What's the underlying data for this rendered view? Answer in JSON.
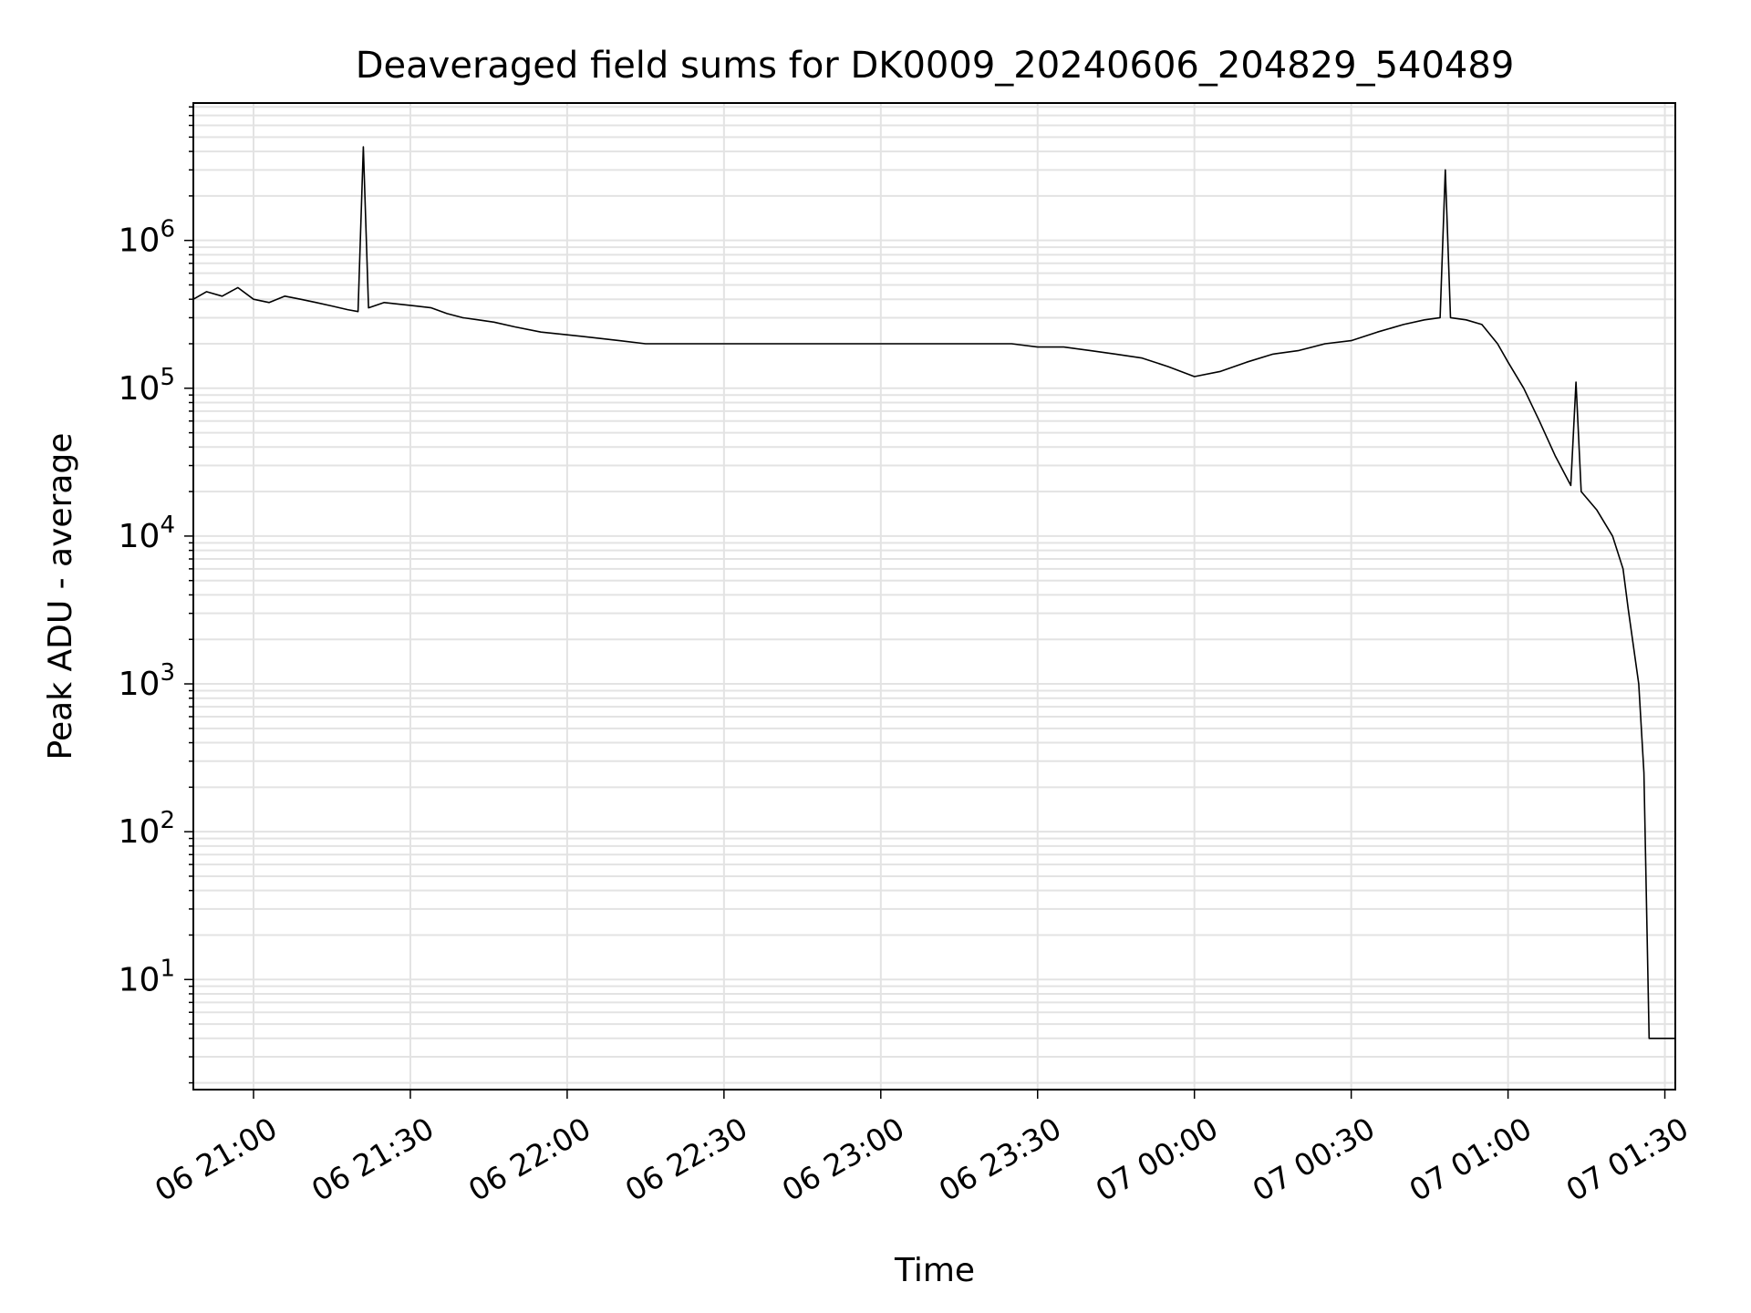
{
  "chart_data": {
    "type": "line",
    "title": "Deaveraged field sums for DK0009_20240606_204829_540489",
    "xlabel": "Time",
    "ylabel": "Peak ADU - average",
    "x_axis": {
      "type": "time",
      "range": [
        "2024-06-06 20:48:29",
        "2024-06-07 01:32:00"
      ],
      "ticks": [
        {
          "t": "2024-06-06 21:00",
          "label": "06 21:00"
        },
        {
          "t": "2024-06-06 21:30",
          "label": "06 21:30"
        },
        {
          "t": "2024-06-06 22:00",
          "label": "06 22:00"
        },
        {
          "t": "2024-06-06 22:30",
          "label": "06 22:30"
        },
        {
          "t": "2024-06-06 23:00",
          "label": "06 23:00"
        },
        {
          "t": "2024-06-06 23:30",
          "label": "06 23:30"
        },
        {
          "t": "2024-06-07 00:00",
          "label": "07 00:00"
        },
        {
          "t": "2024-06-07 00:30",
          "label": "07 00:30"
        },
        {
          "t": "2024-06-07 01:00",
          "label": "07 01:00"
        },
        {
          "t": "2024-06-07 01:30",
          "label": "07 01:30"
        }
      ]
    },
    "y_axis": {
      "scale": "log",
      "range": [
        1.8,
        8500000
      ],
      "ticks": [
        {
          "value": 10,
          "base": "10",
          "exp": "1"
        },
        {
          "value": 100,
          "base": "10",
          "exp": "2"
        },
        {
          "value": 1000,
          "base": "10",
          "exp": "3"
        },
        {
          "value": 10000,
          "base": "10",
          "exp": "4"
        },
        {
          "value": 100000,
          "base": "10",
          "exp": "5"
        },
        {
          "value": 1000000,
          "base": "10",
          "exp": "6"
        }
      ]
    },
    "grid": true,
    "line_color": "#000000",
    "grid_color": "#e3e3e3",
    "series": [
      {
        "points": [
          [
            "2024-06-06 20:48:29",
            400000
          ],
          [
            "2024-06-06 20:51",
            450000
          ],
          [
            "2024-06-06 20:54",
            420000
          ],
          [
            "2024-06-06 20:57",
            480000
          ],
          [
            "2024-06-06 21:00",
            400000
          ],
          [
            "2024-06-06 21:03",
            380000
          ],
          [
            "2024-06-06 21:06",
            420000
          ],
          [
            "2024-06-06 21:09",
            400000
          ],
          [
            "2024-06-06 21:12",
            380000
          ],
          [
            "2024-06-06 21:15",
            360000
          ],
          [
            "2024-06-06 21:18",
            340000
          ],
          [
            "2024-06-06 21:20",
            330000
          ],
          [
            "2024-06-06 21:21",
            4300000
          ],
          [
            "2024-06-06 21:22",
            350000
          ],
          [
            "2024-06-06 21:25",
            380000
          ],
          [
            "2024-06-06 21:28",
            370000
          ],
          [
            "2024-06-06 21:31",
            360000
          ],
          [
            "2024-06-06 21:34",
            350000
          ],
          [
            "2024-06-06 21:37",
            320000
          ],
          [
            "2024-06-06 21:40",
            300000
          ],
          [
            "2024-06-06 21:43",
            290000
          ],
          [
            "2024-06-06 21:46",
            280000
          ],
          [
            "2024-06-06 21:50",
            260000
          ],
          [
            "2024-06-06 21:55",
            240000
          ],
          [
            "2024-06-06 22:00",
            230000
          ],
          [
            "2024-06-06 22:05",
            220000
          ],
          [
            "2024-06-06 22:10",
            210000
          ],
          [
            "2024-06-06 22:15",
            200000
          ],
          [
            "2024-06-06 22:20",
            200000
          ],
          [
            "2024-06-06 22:25",
            200000
          ],
          [
            "2024-06-06 22:30",
            200000
          ],
          [
            "2024-06-06 22:35",
            200000
          ],
          [
            "2024-06-06 22:40",
            200000
          ],
          [
            "2024-06-06 22:45",
            200000
          ],
          [
            "2024-06-06 22:50",
            200000
          ],
          [
            "2024-06-06 22:55",
            200000
          ],
          [
            "2024-06-06 23:00",
            200000
          ],
          [
            "2024-06-06 23:05",
            200000
          ],
          [
            "2024-06-06 23:10",
            200000
          ],
          [
            "2024-06-06 23:15",
            200000
          ],
          [
            "2024-06-06 23:20",
            200000
          ],
          [
            "2024-06-06 23:25",
            200000
          ],
          [
            "2024-06-06 23:30",
            190000
          ],
          [
            "2024-06-06 23:35",
            190000
          ],
          [
            "2024-06-06 23:40",
            180000
          ],
          [
            "2024-06-06 23:45",
            170000
          ],
          [
            "2024-06-06 23:50",
            160000
          ],
          [
            "2024-06-06 23:55",
            140000
          ],
          [
            "2024-06-07 00:00",
            120000
          ],
          [
            "2024-06-07 00:05",
            130000
          ],
          [
            "2024-06-07 00:10",
            150000
          ],
          [
            "2024-06-07 00:15",
            170000
          ],
          [
            "2024-06-07 00:20",
            180000
          ],
          [
            "2024-06-07 00:25",
            200000
          ],
          [
            "2024-06-07 00:30",
            210000
          ],
          [
            "2024-06-07 00:35",
            240000
          ],
          [
            "2024-06-07 00:40",
            270000
          ],
          [
            "2024-06-07 00:44",
            290000
          ],
          [
            "2024-06-07 00:47",
            300000
          ],
          [
            "2024-06-07 00:48",
            3000000
          ],
          [
            "2024-06-07 00:49",
            300000
          ],
          [
            "2024-06-07 00:52",
            290000
          ],
          [
            "2024-06-07 00:55",
            270000
          ],
          [
            "2024-06-07 00:58",
            200000
          ],
          [
            "2024-06-07 01:00",
            150000
          ],
          [
            "2024-06-07 01:03",
            100000
          ],
          [
            "2024-06-07 01:06",
            60000
          ],
          [
            "2024-06-07 01:09",
            35000
          ],
          [
            "2024-06-07 01:12",
            22000
          ],
          [
            "2024-06-07 01:13",
            110000
          ],
          [
            "2024-06-07 01:14",
            20000
          ],
          [
            "2024-06-07 01:17",
            15000
          ],
          [
            "2024-06-07 01:20",
            10000
          ],
          [
            "2024-06-07 01:22",
            6000
          ],
          [
            "2024-06-07 01:23",
            3200
          ],
          [
            "2024-06-07 01:25",
            1000
          ],
          [
            "2024-06-07 01:26",
            250
          ],
          [
            "2024-06-07 01:27",
            4
          ],
          [
            "2024-06-07 01:32",
            4
          ]
        ]
      }
    ]
  }
}
